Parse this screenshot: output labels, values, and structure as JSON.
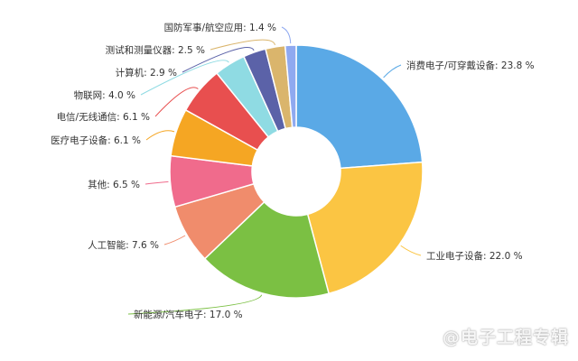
{
  "chart_data": {
    "type": "pie",
    "style": "donut",
    "title": "",
    "label_format": "{name}: {value} %",
    "start_angle_deg": 0,
    "direction": "clockwise",
    "hole_ratio": 0.35,
    "slices": [
      {
        "name": "消费电子/可穿戴设备",
        "value": 23.8,
        "color": "#5aa9e6"
      },
      {
        "name": "工业电子设备",
        "value": 22.0,
        "color": "#fbc543"
      },
      {
        "name": "新能源/汽车电子",
        "value": 17.0,
        "color": "#7bc043"
      },
      {
        "name": "人工智能",
        "value": 7.6,
        "color": "#f08c6c"
      },
      {
        "name": "其他",
        "value": 6.5,
        "color": "#f06b8c"
      },
      {
        "name": "医疗电子设备",
        "value": 6.1,
        "color": "#f5a623"
      },
      {
        "name": "电信/无线通信",
        "value": 6.1,
        "color": "#e84f4f"
      },
      {
        "name": "物联网",
        "value": 4.0,
        "color": "#8fdbe3"
      },
      {
        "name": "计算机",
        "value": 2.9,
        "color": "#5b62a8"
      },
      {
        "name": "测试和测量仪器",
        "value": 2.5,
        "color": "#dab56c"
      },
      {
        "name": "国防军事/航空应用",
        "value": 1.4,
        "color": "#8fa9f0"
      }
    ]
  },
  "watermark": "@电子工程专辑"
}
